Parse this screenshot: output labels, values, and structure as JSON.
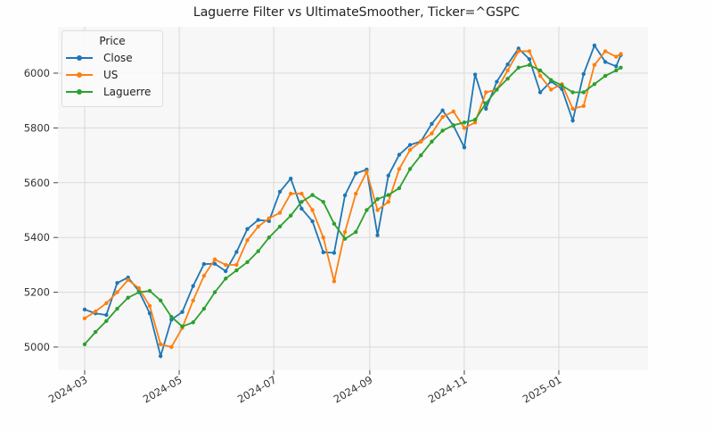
{
  "chart_data": {
    "type": "line",
    "title": "Laguerre Filter vs UltimateSmoother, Ticker=^GSPC",
    "xlabel": "",
    "ylabel": "",
    "ylim": [
      4930,
      6150
    ],
    "yticks": [
      5000,
      5200,
      5400,
      5600,
      5800,
      6000
    ],
    "xticks": [
      "2024-03",
      "2024-05",
      "2024-07",
      "2024-09",
      "2024-11",
      "2025-01"
    ],
    "grid": true,
    "legend": {
      "title": "Price",
      "position": "upper left",
      "entries": [
        "Close",
        "US",
        "Laguerre"
      ]
    },
    "x": [
      "2024-03-01",
      "2024-03-08",
      "2024-03-15",
      "2024-03-22",
      "2024-03-29",
      "2024-04-05",
      "2024-04-12",
      "2024-04-19",
      "2024-04-26",
      "2024-05-03",
      "2024-05-10",
      "2024-05-17",
      "2024-05-24",
      "2024-05-31",
      "2024-06-07",
      "2024-06-14",
      "2024-06-21",
      "2024-06-28",
      "2024-07-05",
      "2024-07-12",
      "2024-07-19",
      "2024-07-26",
      "2024-08-02",
      "2024-08-09",
      "2024-08-16",
      "2024-08-23",
      "2024-08-30",
      "2024-09-06",
      "2024-09-13",
      "2024-09-20",
      "2024-09-27",
      "2024-10-04",
      "2024-10-11",
      "2024-10-18",
      "2024-10-25",
      "2024-11-01",
      "2024-11-08",
      "2024-11-15",
      "2024-11-22",
      "2024-11-29",
      "2024-12-06",
      "2024-12-13",
      "2024-12-20",
      "2024-12-27",
      "2025-01-03",
      "2025-01-10",
      "2025-01-17",
      "2025-01-24",
      "2025-01-31",
      "2025-02-07",
      "2025-02-10"
    ],
    "series": [
      {
        "name": "Close",
        "color": "#1f77b4",
        "values": [
          5137,
          5123,
          5117,
          5234,
          5254,
          5204,
          5123,
          4967,
          5100,
          5128,
          5223,
          5303,
          5304,
          5277,
          5347,
          5431,
          5464,
          5460,
          5567,
          5615,
          5505,
          5459,
          5346,
          5344,
          5554,
          5634,
          5648,
          5408,
          5626,
          5702,
          5738,
          5751,
          5815,
          5864,
          5808,
          5729,
          5995,
          5870,
          5969,
          6032,
          6090,
          6051,
          5930,
          5970,
          5942,
          5827,
          5997,
          6101,
          6041,
          6025,
          6066
        ]
      },
      {
        "name": "US",
        "color": "#ff7f0e",
        "values": [
          5105,
          5130,
          5160,
          5200,
          5245,
          5215,
          5150,
          5010,
          5000,
          5070,
          5170,
          5260,
          5320,
          5300,
          5300,
          5390,
          5440,
          5470,
          5490,
          5560,
          5560,
          5500,
          5400,
          5240,
          5420,
          5560,
          5640,
          5500,
          5530,
          5650,
          5720,
          5750,
          5780,
          5840,
          5860,
          5800,
          5820,
          5930,
          5940,
          6010,
          6080,
          6080,
          5990,
          5940,
          5960,
          5870,
          5880,
          6030,
          6080,
          6060,
          6070
        ]
      },
      {
        "name": "Laguerre",
        "color": "#2ca02c",
        "values": [
          5010,
          5055,
          5095,
          5140,
          5180,
          5200,
          5205,
          5170,
          5110,
          5075,
          5090,
          5140,
          5200,
          5250,
          5280,
          5310,
          5350,
          5400,
          5440,
          5480,
          5530,
          5555,
          5530,
          5450,
          5395,
          5420,
          5500,
          5540,
          5555,
          5580,
          5650,
          5700,
          5750,
          5790,
          5810,
          5820,
          5830,
          5890,
          5940,
          5980,
          6020,
          6030,
          6010,
          5975,
          5955,
          5930,
          5930,
          5960,
          5990,
          6010,
          6020
        ]
      }
    ]
  }
}
